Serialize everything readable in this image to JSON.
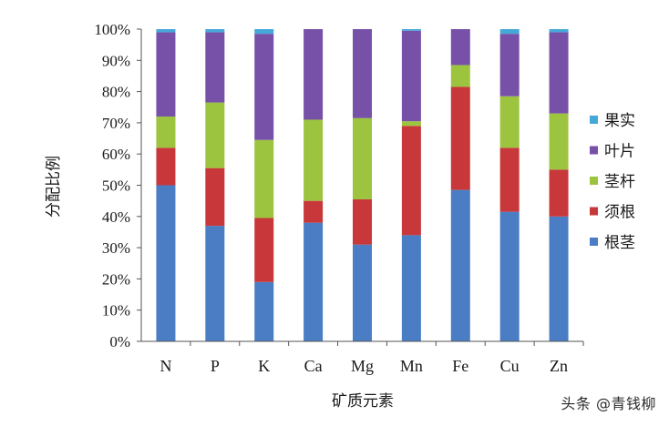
{
  "chart_data": {
    "type": "bar",
    "stacked": true,
    "categories": [
      "N",
      "P",
      "K",
      "Ca",
      "Mg",
      "Mn",
      "Fe",
      "Cu",
      "Zn"
    ],
    "series": [
      {
        "name": "根茎",
        "color": "#4a7dc4",
        "values": [
          50,
          37,
          19,
          38,
          31,
          34,
          48.5,
          41.5,
          40
        ]
      },
      {
        "name": "须根",
        "color": "#c8383a",
        "values": [
          12,
          18.5,
          20.5,
          7,
          14.5,
          35,
          33,
          20.5,
          15
        ]
      },
      {
        "name": "茎杆",
        "color": "#9cc43e",
        "values": [
          10,
          21,
          25,
          26,
          26,
          1.5,
          7,
          16.5,
          18
        ]
      },
      {
        "name": "叶片",
        "color": "#7751a8",
        "values": [
          27,
          22.5,
          34,
          29,
          28.5,
          29,
          11.5,
          20,
          26
        ]
      },
      {
        "name": "果实",
        "color": "#46a8d8",
        "values": [
          1,
          1,
          1.5,
          0,
          0,
          0.5,
          0,
          1.5,
          1
        ]
      }
    ],
    "legend_order": [
      "果实",
      "叶片",
      "茎杆",
      "须根",
      "根茎"
    ],
    "legend_position": "right",
    "ylim": [
      0,
      100
    ],
    "y_ticks": [
      "0%",
      "10%",
      "20%",
      "30%",
      "40%",
      "50%",
      "60%",
      "70%",
      "80%",
      "90%",
      "100%"
    ],
    "xlabel": "矿质元素",
    "ylabel": "分配比例",
    "grid": false
  },
  "watermark": "头条 @青钱柳"
}
